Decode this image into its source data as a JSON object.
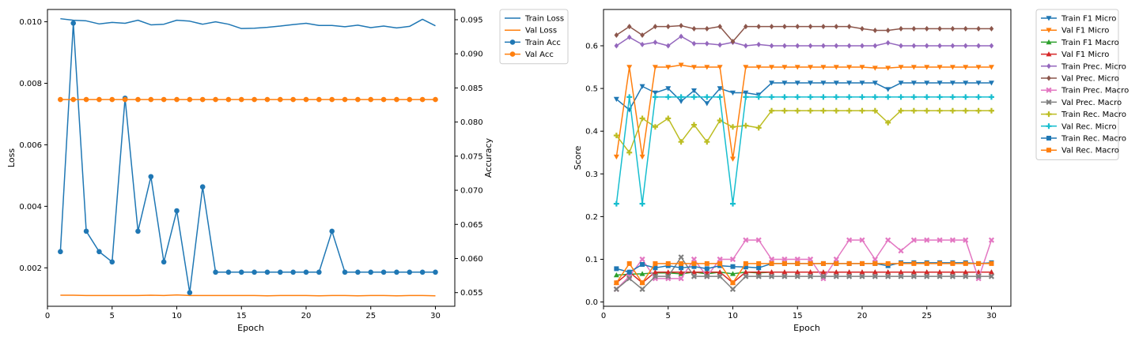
{
  "chart_data": [
    {
      "type": "line",
      "title": "",
      "xlabel": "Epoch",
      "ylabel": "Loss",
      "ylabel_right": "Accuracy",
      "xlim": [
        0,
        31.5
      ],
      "ylim": [
        0.00075,
        0.0104
      ],
      "ylim_right": [
        0.053,
        0.0965
      ],
      "xticks": [
        0,
        5,
        10,
        15,
        20,
        25,
        30
      ],
      "yticks": [
        "0.002",
        "0.004",
        "0.006",
        "0.008",
        "0.010"
      ],
      "yticks_right": [
        "0.055",
        "0.060",
        "0.065",
        "0.070",
        "0.075",
        "0.080",
        "0.085",
        "0.090",
        "0.095"
      ],
      "grid": false,
      "legend_position": "outside upper right",
      "x": [
        1,
        2,
        3,
        4,
        5,
        6,
        7,
        8,
        9,
        10,
        11,
        12,
        13,
        14,
        15,
        16,
        17,
        18,
        19,
        20,
        21,
        22,
        23,
        24,
        25,
        26,
        27,
        28,
        29,
        30
      ],
      "series": [
        {
          "name": "Train Loss",
          "axis": "left",
          "color": "#1f77b4",
          "marker": "none",
          "values": [
            0.0101,
            0.01005,
            0.01003,
            0.00993,
            0.00998,
            0.00995,
            0.01005,
            0.0099,
            0.00992,
            0.01005,
            0.01002,
            0.00992,
            0.01,
            0.00992,
            0.00978,
            0.00979,
            0.00982,
            0.00986,
            0.00991,
            0.00995,
            0.00988,
            0.00988,
            0.00984,
            0.00989,
            0.00981,
            0.00986,
            0.0098,
            0.00985,
            0.01008,
            0.00987
          ]
        },
        {
          "name": "Val Loss",
          "axis": "left",
          "color": "#ff7f0e",
          "marker": "none",
          "values": [
            0.00111,
            0.00111,
            0.0011,
            0.0011,
            0.0011,
            0.0011,
            0.0011,
            0.00111,
            0.0011,
            0.00112,
            0.0011,
            0.0011,
            0.0011,
            0.0011,
            0.0011,
            0.0011,
            0.00109,
            0.0011,
            0.0011,
            0.0011,
            0.00109,
            0.0011,
            0.0011,
            0.00109,
            0.0011,
            0.0011,
            0.00109,
            0.0011,
            0.0011,
            0.00109
          ]
        },
        {
          "name": "Train Acc",
          "axis": "right",
          "color": "#1f77b4",
          "marker": "circle",
          "values": [
            0.061,
            0.0945,
            0.064,
            0.061,
            0.0595,
            0.0835,
            0.064,
            0.072,
            0.0595,
            0.067,
            0.055,
            0.0705,
            0.058,
            0.058,
            0.058,
            0.058,
            0.058,
            0.058,
            0.058,
            0.058,
            0.058,
            0.064,
            0.058,
            0.058,
            0.058,
            0.058,
            0.058,
            0.058,
            0.058,
            0.058
          ]
        },
        {
          "name": "Val Acc",
          "axis": "right",
          "color": "#ff7f0e",
          "marker": "circle",
          "values": [
            0.0833,
            0.0833,
            0.0833,
            0.0833,
            0.0833,
            0.0833,
            0.0833,
            0.0833,
            0.0833,
            0.0833,
            0.0833,
            0.0833,
            0.0833,
            0.0833,
            0.0833,
            0.0833,
            0.0833,
            0.0833,
            0.0833,
            0.0833,
            0.0833,
            0.0833,
            0.0833,
            0.0833,
            0.0833,
            0.0833,
            0.0833,
            0.0833,
            0.0833,
            0.0833
          ]
        }
      ]
    },
    {
      "type": "line",
      "title": "",
      "xlabel": "Epoch",
      "ylabel": "Score",
      "xlim": [
        0,
        31.5
      ],
      "ylim": [
        -0.01,
        0.685
      ],
      "xticks": [
        0,
        5,
        10,
        15,
        20,
        25,
        30
      ],
      "yticks": [
        "0.0",
        "0.1",
        "0.2",
        "0.3",
        "0.4",
        "0.5",
        "0.6"
      ],
      "grid": false,
      "legend_position": "outside upper right",
      "x": [
        1,
        2,
        3,
        4,
        5,
        6,
        7,
        8,
        9,
        10,
        11,
        12,
        13,
        14,
        15,
        16,
        17,
        18,
        19,
        20,
        21,
        22,
        23,
        24,
        25,
        26,
        27,
        28,
        29,
        30
      ],
      "series": [
        {
          "name": "Train F1 Micro",
          "color": "#1f77b4",
          "marker": "tri_down",
          "values": [
            0.475,
            0.45,
            0.505,
            0.49,
            0.5,
            0.47,
            0.495,
            0.465,
            0.5,
            0.49,
            0.49,
            0.485,
            0.513,
            0.513,
            0.513,
            0.513,
            0.513,
            0.513,
            0.513,
            0.513,
            0.513,
            0.498,
            0.513,
            0.513,
            0.513,
            0.513,
            0.513,
            0.513,
            0.513,
            0.513
          ]
        },
        {
          "name": "Val F1 Micro",
          "color": "#ff7f0e",
          "marker": "tri_down",
          "values": [
            0.34,
            0.55,
            0.34,
            0.55,
            0.55,
            0.555,
            0.55,
            0.55,
            0.55,
            0.335,
            0.55,
            0.55,
            0.55,
            0.55,
            0.55,
            0.55,
            0.55,
            0.55,
            0.55,
            0.55,
            0.548,
            0.548,
            0.55,
            0.55,
            0.55,
            0.55,
            0.55,
            0.55,
            0.55,
            0.55
          ]
        },
        {
          "name": "Train F1 Macro",
          "color": "#2ca02c",
          "marker": "tri_up",
          "values": [
            0.063,
            0.065,
            0.066,
            0.068,
            0.068,
            0.066,
            0.07,
            0.066,
            0.07,
            0.066,
            0.07,
            0.068,
            0.07,
            0.07,
            0.07,
            0.07,
            0.07,
            0.07,
            0.07,
            0.07,
            0.07,
            0.07,
            0.07,
            0.07,
            0.07,
            0.07,
            0.07,
            0.07,
            0.07,
            0.07
          ]
        },
        {
          "name": "Val F1 Micro",
          "color": "#d62728",
          "marker": "tri_up",
          "values": [
            0.045,
            0.07,
            0.045,
            0.07,
            0.07,
            0.07,
            0.07,
            0.07,
            0.07,
            0.045,
            0.07,
            0.07,
            0.07,
            0.07,
            0.07,
            0.07,
            0.07,
            0.07,
            0.07,
            0.07,
            0.07,
            0.07,
            0.07,
            0.07,
            0.07,
            0.07,
            0.07,
            0.07,
            0.07,
            0.07
          ]
        },
        {
          "name": "Train Prec. Micro",
          "color": "#9467bd",
          "marker": "diamond",
          "values": [
            0.6,
            0.62,
            0.603,
            0.608,
            0.6,
            0.622,
            0.605,
            0.605,
            0.602,
            0.608,
            0.6,
            0.603,
            0.6,
            0.6,
            0.6,
            0.6,
            0.6,
            0.6,
            0.6,
            0.6,
            0.6,
            0.607,
            0.6,
            0.6,
            0.6,
            0.6,
            0.6,
            0.6,
            0.6,
            0.6
          ]
        },
        {
          "name": "Val Prec. Micro",
          "color": "#8c564b",
          "marker": "diamond",
          "values": [
            0.625,
            0.645,
            0.625,
            0.645,
            0.645,
            0.647,
            0.64,
            0.64,
            0.645,
            0.61,
            0.645,
            0.645,
            0.645,
            0.645,
            0.645,
            0.645,
            0.645,
            0.645,
            0.645,
            0.64,
            0.636,
            0.636,
            0.64,
            0.64,
            0.64,
            0.64,
            0.64,
            0.64,
            0.64,
            0.64
          ]
        },
        {
          "name": "Train Prec. Macro",
          "color": "#e377c2",
          "marker": "x",
          "values": [
            0.03,
            0.06,
            0.1,
            0.055,
            0.055,
            0.055,
            0.1,
            0.06,
            0.1,
            0.1,
            0.145,
            0.145,
            0.1,
            0.1,
            0.1,
            0.1,
            0.055,
            0.1,
            0.145,
            0.145,
            0.1,
            0.145,
            0.12,
            0.145,
            0.145,
            0.145,
            0.145,
            0.145,
            0.055,
            0.145
          ]
        },
        {
          "name": "Val Prec. Macro",
          "color": "#7f7f7f",
          "marker": "x",
          "values": [
            0.03,
            0.055,
            0.03,
            0.06,
            0.06,
            0.105,
            0.06,
            0.06,
            0.06,
            0.03,
            0.06,
            0.06,
            0.06,
            0.06,
            0.06,
            0.06,
            0.06,
            0.06,
            0.06,
            0.06,
            0.06,
            0.06,
            0.06,
            0.06,
            0.06,
            0.06,
            0.06,
            0.06,
            0.06,
            0.06
          ]
        },
        {
          "name": "Train Rec. Macro",
          "color": "#bcbd22",
          "marker": "plus",
          "values": [
            0.39,
            0.35,
            0.43,
            0.41,
            0.43,
            0.375,
            0.415,
            0.375,
            0.425,
            0.41,
            0.413,
            0.408,
            0.448,
            0.448,
            0.448,
            0.448,
            0.448,
            0.448,
            0.448,
            0.448,
            0.448,
            0.42,
            0.448,
            0.448,
            0.448,
            0.448,
            0.448,
            0.448,
            0.448,
            0.448
          ]
        },
        {
          "name": "Val Rec. Micro",
          "color": "#17becf",
          "marker": "plus",
          "values": [
            0.23,
            0.48,
            0.23,
            0.48,
            0.48,
            0.48,
            0.48,
            0.48,
            0.48,
            0.23,
            0.48,
            0.48,
            0.48,
            0.48,
            0.48,
            0.48,
            0.48,
            0.48,
            0.48,
            0.48,
            0.48,
            0.48,
            0.48,
            0.48,
            0.48,
            0.48,
            0.48,
            0.48,
            0.48,
            0.48
          ]
        },
        {
          "name": "Train Rec. Macro",
          "color": "#1f77b4",
          "marker": "square",
          "values": [
            0.078,
            0.07,
            0.088,
            0.08,
            0.085,
            0.08,
            0.083,
            0.078,
            0.085,
            0.083,
            0.082,
            0.08,
            0.09,
            0.09,
            0.09,
            0.09,
            0.09,
            0.09,
            0.09,
            0.09,
            0.09,
            0.085,
            0.092,
            0.092,
            0.092,
            0.092,
            0.092,
            0.092,
            0.09,
            0.092
          ]
        },
        {
          "name": "Val Rec. Macro",
          "color": "#ff7f0e",
          "marker": "square",
          "values": [
            0.045,
            0.09,
            0.045,
            0.09,
            0.09,
            0.09,
            0.09,
            0.09,
            0.09,
            0.045,
            0.09,
            0.09,
            0.09,
            0.09,
            0.09,
            0.09,
            0.09,
            0.09,
            0.09,
            0.09,
            0.09,
            0.09,
            0.09,
            0.09,
            0.09,
            0.09,
            0.09,
            0.09,
            0.09,
            0.09
          ]
        }
      ]
    }
  ]
}
